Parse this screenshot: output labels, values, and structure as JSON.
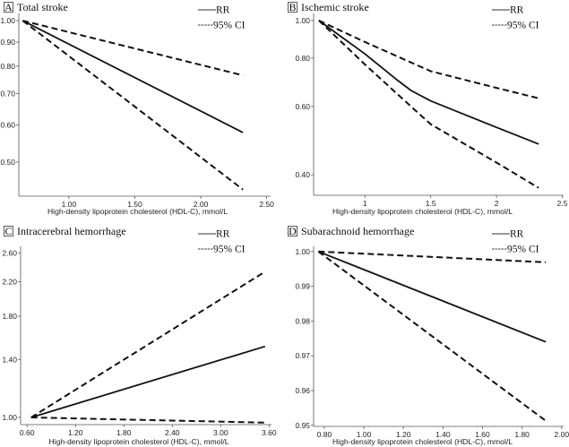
{
  "chart_data": [
    {
      "type": "line",
      "letter": "A",
      "title": "Total stroke",
      "xlabel": "High-density lipoprotein cholesterol (HDL-C), mmol/L",
      "ylabel": "",
      "yscale": "log",
      "xlim": [
        0.62,
        2.53
      ],
      "ylim": [
        0.423,
        1.036
      ],
      "xticks": [
        {
          "v": 1.0,
          "label": "1.00"
        },
        {
          "v": 1.5,
          "label": "1.50"
        },
        {
          "v": 2.0,
          "label": "2.00"
        },
        {
          "v": 2.5,
          "label": "2.50"
        }
      ],
      "yticks": [
        {
          "v": 1.0,
          "label": "1.00"
        },
        {
          "v": 0.9,
          "label": "0.90"
        },
        {
          "v": 0.8,
          "label": "0.80"
        },
        {
          "v": 0.7,
          "label": "0.70"
        },
        {
          "v": 0.6,
          "label": "0.60"
        },
        {
          "v": 0.5,
          "label": "0.50"
        }
      ],
      "legend": [
        "RR",
        "95% CI"
      ],
      "series": [
        {
          "name": "RR",
          "style": "solid",
          "points": [
            [
              0.65,
              1.0
            ],
            [
              2.32,
              0.578
            ]
          ]
        },
        {
          "name": "95% CI",
          "style": "dashed",
          "points": [
            [
              0.65,
              1.0
            ],
            [
              2.32,
              0.765
            ]
          ]
        },
        {
          "name": "95% CI",
          "style": "dashed",
          "points": [
            [
              0.65,
              1.0
            ],
            [
              2.32,
              0.437
            ]
          ]
        }
      ]
    },
    {
      "type": "line",
      "letter": "B",
      "title": "Ischemic stroke",
      "xlabel": "High-density lipoprotein cholesterol (HDL-C), mmol/L",
      "ylabel": "",
      "yscale": "log",
      "xlim": [
        0.61,
        2.51
      ],
      "ylim": [
        0.354,
        1.043
      ],
      "xticks": [
        {
          "v": 1,
          "label": "1"
        },
        {
          "v": 1.5,
          "label": "1.5"
        },
        {
          "v": 2,
          "label": "2"
        },
        {
          "v": 2.5,
          "label": "2.5"
        }
      ],
      "yticks": [
        {
          "v": 1.0,
          "label": "1.00"
        },
        {
          "v": 0.8,
          "label": "0.80"
        },
        {
          "v": 0.6,
          "label": "0.60"
        },
        {
          "v": 0.4,
          "label": "0.40"
        }
      ],
      "legend": [
        "RR",
        "95% CI"
      ],
      "series": [
        {
          "name": "RR",
          "style": "solid",
          "points": [
            [
              0.65,
              1.0
            ],
            [
              1.0,
              0.82
            ],
            [
              1.25,
              0.7
            ],
            [
              1.35,
              0.66
            ],
            [
              1.5,
              0.62
            ],
            [
              2.0,
              0.53
            ],
            [
              2.32,
              0.48
            ]
          ]
        },
        {
          "name": "95% CI",
          "style": "dashed",
          "points": [
            [
              0.65,
              1.0
            ],
            [
              1.0,
              0.88
            ],
            [
              1.5,
              0.74
            ],
            [
              2.0,
              0.67
            ],
            [
              2.32,
              0.63
            ]
          ]
        },
        {
          "name": "95% CI",
          "style": "dashed",
          "points": [
            [
              0.65,
              1.0
            ],
            [
              1.0,
              0.77
            ],
            [
              1.35,
              0.6
            ],
            [
              1.5,
              0.54
            ],
            [
              2.0,
              0.43
            ],
            [
              2.32,
              0.37
            ]
          ]
        }
      ]
    },
    {
      "type": "line",
      "letter": "C",
      "title": "Intracerebral hemorrhage",
      "xlabel": "High-density lipoprotein cholesterol (HDL-C), mmol/L",
      "ylabel": "",
      "yscale": "log",
      "xlim": [
        0.52,
        3.63
      ],
      "ylim": [
        0.959,
        2.7
      ],
      "xticks": [
        {
          "v": 0.6,
          "label": "0.60"
        },
        {
          "v": 1.2,
          "label": "1.20"
        },
        {
          "v": 1.8,
          "label": "1.80"
        },
        {
          "v": 2.4,
          "label": "2.40"
        },
        {
          "v": 3.0,
          "label": "3.00"
        },
        {
          "v": 3.6,
          "label": "3.60"
        }
      ],
      "yticks": [
        {
          "v": 2.6,
          "label": "2.60"
        },
        {
          "v": 2.2,
          "label": "2.20"
        },
        {
          "v": 1.8,
          "label": "1.80"
        },
        {
          "v": 1.4,
          "label": "1.40"
        },
        {
          "v": 1.0,
          "label": "1.00"
        }
      ],
      "legend": [
        "RR",
        "95% CI"
      ],
      "series": [
        {
          "name": "RR",
          "style": "solid",
          "points": [
            [
              0.65,
              1.0
            ],
            [
              3.55,
              1.51
            ]
          ]
        },
        {
          "name": "95% CI",
          "style": "dashed",
          "points": [
            [
              0.65,
              1.0
            ],
            [
              3.55,
              2.33
            ]
          ]
        },
        {
          "name": "95% CI",
          "style": "dashed",
          "points": [
            [
              0.65,
              1.0
            ],
            [
              3.55,
              0.97
            ]
          ]
        }
      ]
    },
    {
      "type": "line",
      "letter": "D",
      "title": "Subarachnoid hemorrhage",
      "xlabel": "High-density lipoprotein cholesterol (HDL-C), mmol/L",
      "ylabel": "",
      "yscale": "linear",
      "xlim": [
        0.746,
        2.01
      ],
      "ylim": [
        0.9497,
        1.0015
      ],
      "xticks": [
        {
          "v": 0.8,
          "label": "0.80"
        },
        {
          "v": 1.0,
          "label": "1.00"
        },
        {
          "v": 1.2,
          "label": "1.20"
        },
        {
          "v": 1.4,
          "label": "1.40"
        },
        {
          "v": 1.6,
          "label": "1.60"
        },
        {
          "v": 1.8,
          "label": "1.80"
        },
        {
          "v": 2.0,
          "label": "2.00"
        }
      ],
      "yticks": [
        {
          "v": 1.0,
          "label": "1.00"
        },
        {
          "v": 0.99,
          "label": "0.99"
        },
        {
          "v": 0.98,
          "label": "0.98"
        },
        {
          "v": 0.97,
          "label": "0.97"
        },
        {
          "v": 0.96,
          "label": "0.96"
        },
        {
          "v": 0.95,
          "label": "0.95"
        }
      ],
      "legend": [
        "RR",
        "95% CI"
      ],
      "series": [
        {
          "name": "RR",
          "style": "solid",
          "points": [
            [
              0.77,
              1.0
            ],
            [
              1.92,
              0.974
            ]
          ]
        },
        {
          "name": "95% CI",
          "style": "dashed",
          "points": [
            [
              0.77,
              1.0
            ],
            [
              1.92,
              0.9969
            ]
          ]
        },
        {
          "name": "95% CI",
          "style": "dashed",
          "points": [
            [
              0.77,
              1.0
            ],
            [
              1.92,
              0.9513
            ]
          ]
        }
      ]
    }
  ]
}
